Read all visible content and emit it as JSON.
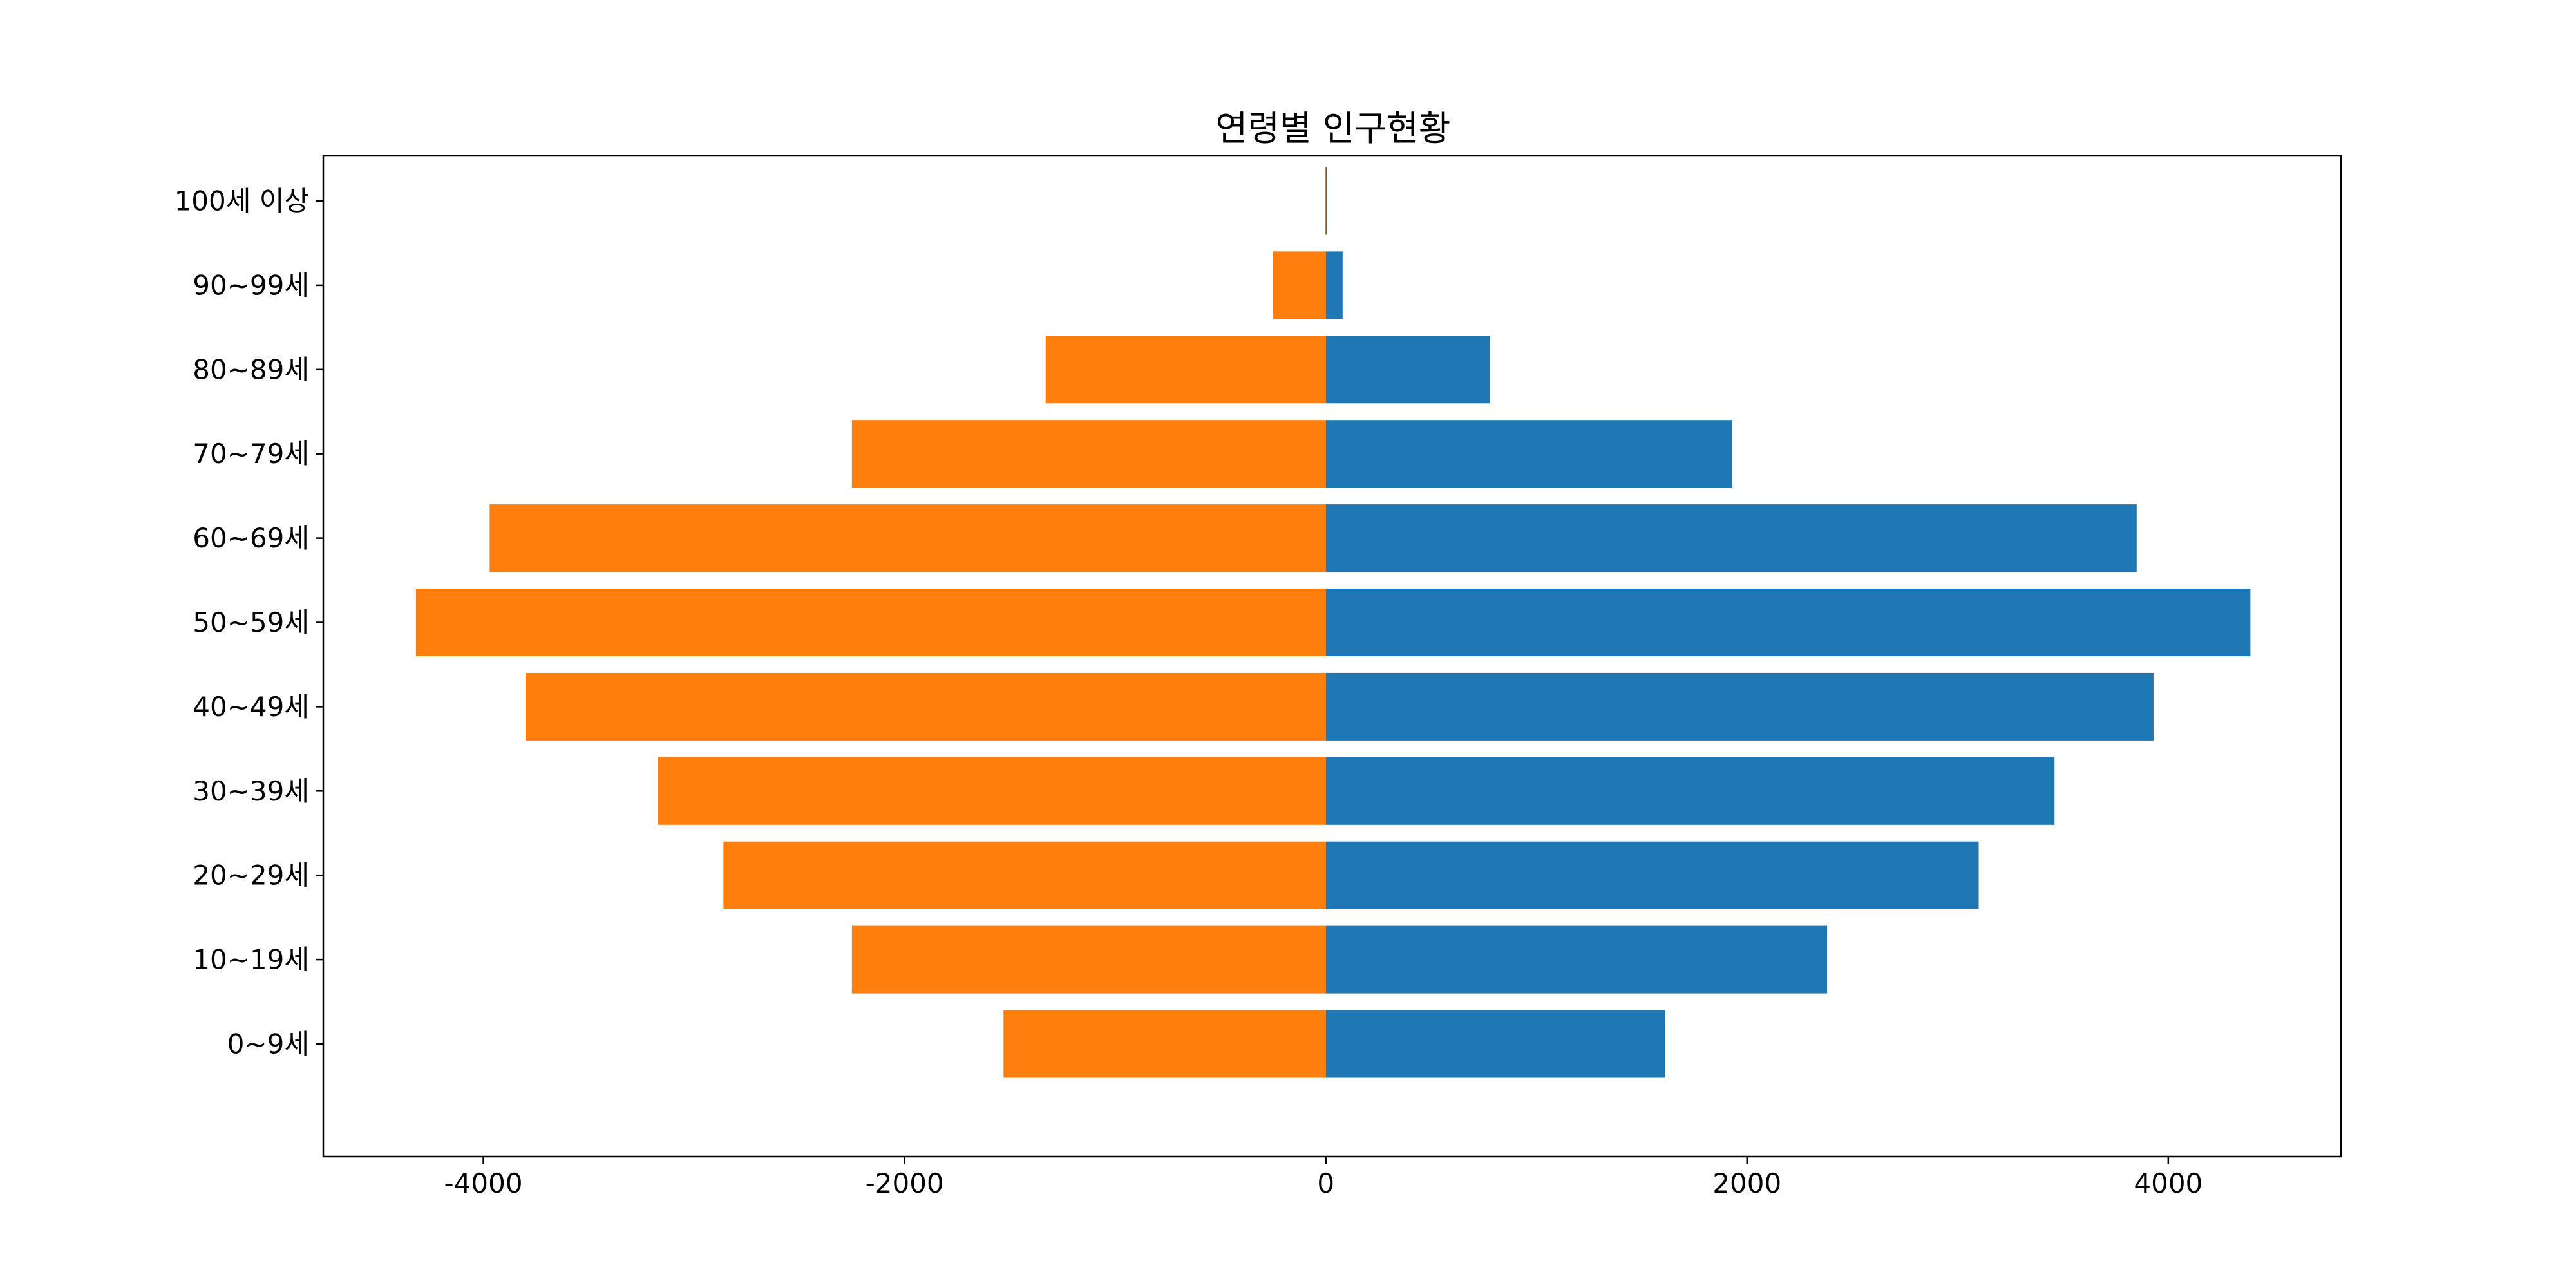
{
  "chart_data": {
    "type": "bar",
    "orientation": "horizontal",
    "title": "연령별 인구현황",
    "xlabel": "",
    "ylabel": "",
    "categories": [
      "0~9세",
      "10~19세",
      "20~29세",
      "30~39세",
      "40~49세",
      "50~59세",
      "60~69세",
      "70~79세",
      "80~89세",
      "90~99세",
      "100세 이상"
    ],
    "series": [
      {
        "color": "#ff7f0e",
        "values": [
          -1530,
          -2250,
          -2860,
          -3170,
          -3800,
          -4320,
          -3970,
          -2250,
          -1330,
          -250,
          -4
        ]
      },
      {
        "color": "#1f77b4",
        "values": [
          1610,
          2380,
          3100,
          3460,
          3930,
          4390,
          3850,
          1930,
          780,
          80,
          2
        ]
      }
    ],
    "xlim": [
      -4760,
      4820
    ],
    "xticks": [
      -4000,
      -2000,
      0,
      2000,
      4000
    ],
    "xtick_labels": [
      "-4000",
      "-2000",
      "0",
      "2000",
      "4000"
    ],
    "grid": false,
    "legend": false
  }
}
